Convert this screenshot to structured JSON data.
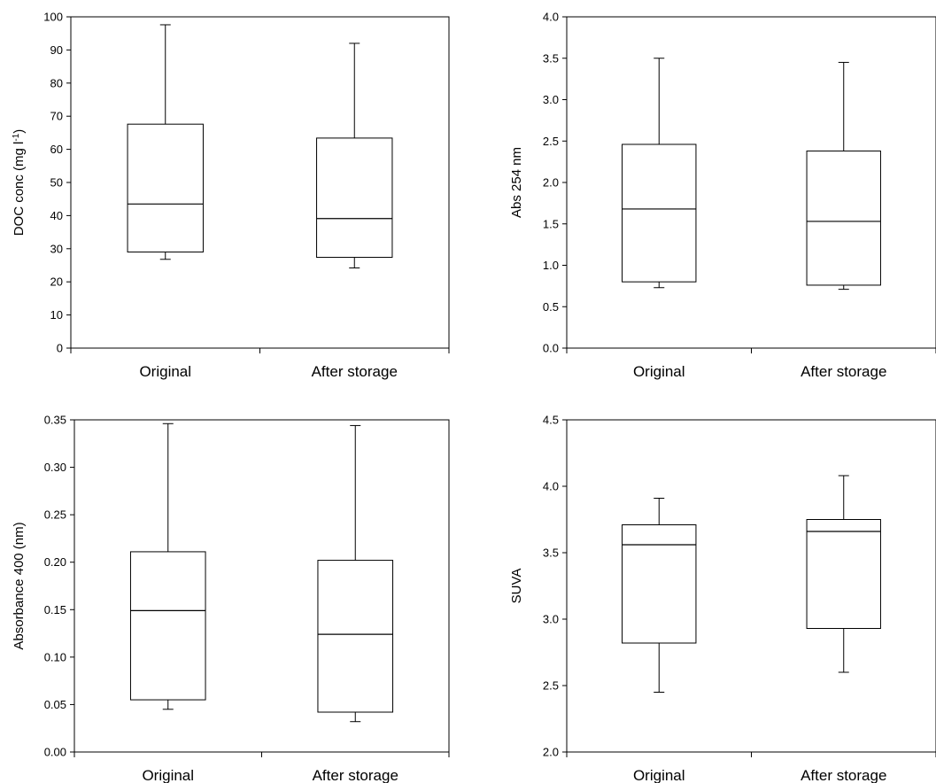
{
  "chart_data": [
    {
      "type": "box",
      "ylabel": "DOC conc (mg l",
      "ylabel_sup": "-1",
      "ylabel_tail": ")",
      "ylim": [
        0,
        100
      ],
      "yticks": [
        "0",
        "10",
        "20",
        "30",
        "40",
        "50",
        "60",
        "70",
        "80",
        "90",
        "100"
      ],
      "categories": [
        "Original",
        "After storage"
      ],
      "boxes": [
        {
          "min": 26.8,
          "q1": 29.0,
          "median": 43.5,
          "q3": 67.6,
          "max": 97.6
        },
        {
          "min": 24.2,
          "q1": 27.4,
          "median": 39.1,
          "q3": 63.4,
          "max": 92.0
        }
      ],
      "grid": false
    },
    {
      "type": "box",
      "ylabel": "Abs 254 nm",
      "ylim": [
        0,
        4
      ],
      "yticks": [
        "0.0",
        "0.5",
        "1.0",
        "1.5",
        "2.0",
        "2.5",
        "3.0",
        "3.5",
        "4.0"
      ],
      "categories": [
        "Original",
        "After storage"
      ],
      "boxes": [
        {
          "min": 0.73,
          "q1": 0.8,
          "median": 1.68,
          "q3": 2.46,
          "max": 3.5
        },
        {
          "min": 0.71,
          "q1": 0.76,
          "median": 1.53,
          "q3": 2.38,
          "max": 3.45
        }
      ],
      "grid": false
    },
    {
      "type": "box",
      "ylabel": "Absorbance  400 (nm)",
      "ylim": [
        0,
        0.35
      ],
      "yticks": [
        "0.00",
        "0.05",
        "0.10",
        "0.15",
        "0.20",
        "0.25",
        "0.30",
        "0.35"
      ],
      "categories": [
        "Original",
        "After storage"
      ],
      "boxes": [
        {
          "min": 0.045,
          "q1": 0.055,
          "median": 0.149,
          "q3": 0.211,
          "max": 0.346
        },
        {
          "min": 0.032,
          "q1": 0.042,
          "median": 0.124,
          "q3": 0.202,
          "max": 0.344
        }
      ],
      "grid": false
    },
    {
      "type": "box",
      "ylabel": "SUVA",
      "ylim": [
        2,
        4.5
      ],
      "yticks": [
        "2.0",
        "2.5",
        "3.0",
        "3.5",
        "4.0",
        "4.5"
      ],
      "categories": [
        "Original",
        "After storage"
      ],
      "boxes": [
        {
          "min": 2.45,
          "q1": 2.82,
          "median": 3.56,
          "q3": 3.71,
          "max": 3.91
        },
        {
          "min": 2.6,
          "q1": 2.93,
          "median": 3.66,
          "q3": 3.75,
          "max": 4.08
        }
      ],
      "grid": false
    }
  ]
}
